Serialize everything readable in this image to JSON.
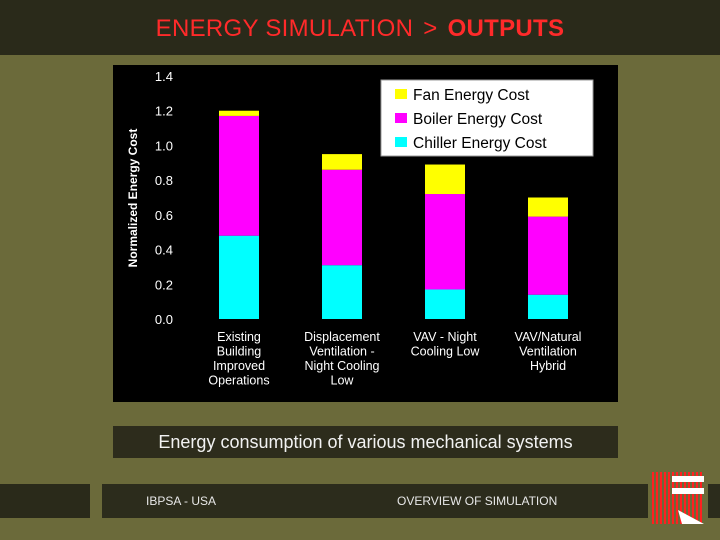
{
  "header": {
    "title_prefix": "ENERGY SIMULATION",
    "separator": ">",
    "title_emphasis": "OUTPUTS"
  },
  "chart_data": {
    "type": "bar",
    "stacked": true,
    "categories": [
      [
        "Existing",
        "Building",
        "Improved",
        "Operations"
      ],
      [
        "Displacement",
        "Ventilation -",
        "Night Cooling",
        "Low"
      ],
      [
        "VAV - Night",
        "Cooling Low"
      ],
      [
        "VAV/Natural",
        "Ventilation",
        "Hybrid"
      ]
    ],
    "series": [
      {
        "name": "Chiller Energy Cost",
        "color": "#00ffff",
        "values": [
          0.48,
          0.31,
          0.17,
          0.14
        ]
      },
      {
        "name": "Boiler Energy Cost",
        "color": "#ff00ff",
        "values": [
          0.69,
          0.55,
          0.55,
          0.45
        ]
      },
      {
        "name": "Fan Energy Cost",
        "color": "#ffff00",
        "values": [
          0.03,
          0.09,
          0.17,
          0.11
        ]
      }
    ],
    "legend_order": [
      "Fan Energy Cost",
      "Boiler Energy Cost",
      "Chiller Energy Cost"
    ],
    "legend_position": "top-right",
    "ylabel": "Normalized Energy Cost",
    "ylim": [
      0,
      1.4
    ],
    "yticks": [
      "0.0",
      "0.2",
      "0.4",
      "0.6",
      "0.8",
      "1.0",
      "1.2",
      "1.4"
    ],
    "grid": false
  },
  "caption": "Energy consumption of various mechanical systems",
  "footer": {
    "left": "IBPSA - USA",
    "center": "OVERVIEW  OF SIMULATION"
  },
  "colors": {
    "background": "#6b6a3a",
    "title_text": "#ff2a2a",
    "bar_dark": "#2a2a1a"
  }
}
